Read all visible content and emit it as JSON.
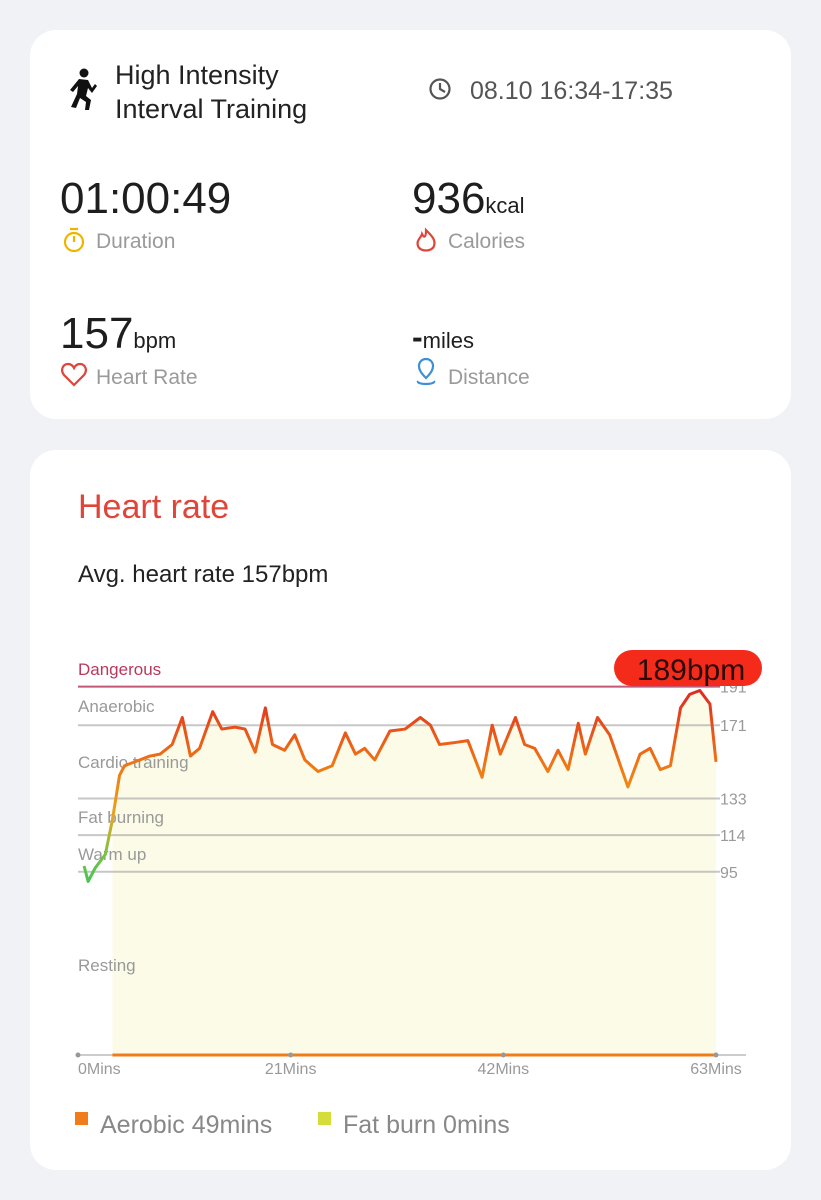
{
  "workout": {
    "title": "High Intensity Interval Training",
    "time": "08.10 16:34-17:35",
    "duration": {
      "value": "01:00:49",
      "label": "Duration"
    },
    "calories": {
      "value": "936",
      "unit": "kcal",
      "label": "Calories"
    },
    "heart_rate": {
      "value": "157",
      "unit": "bpm",
      "label": "Heart Rate"
    },
    "distance": {
      "value": "-",
      "unit": "miles",
      "label": "Distance"
    }
  },
  "chart_data": {
    "type": "line",
    "title": "Heart rate",
    "subtitle": "Avg. heart rate 157bpm",
    "x": [
      0.6,
      1.0,
      1.7,
      2.7,
      3.4,
      4.1,
      4.6,
      5.6,
      7.1,
      8.1,
      9.3,
      10.3,
      11.1,
      12.0,
      13.3,
      14.2,
      15.5,
      16.5,
      17.5,
      18.5,
      19.2,
      20.4,
      21.4,
      22.4,
      23.7,
      25.1,
      26.4,
      27.4,
      28.3,
      29.3,
      30.8,
      32.3,
      33.8,
      34.8,
      35.7,
      37.2,
      38.5,
      39.9,
      40.9,
      41.7,
      43.2,
      44.1,
      45.1,
      46.4,
      47.4,
      48.4,
      49.4,
      50.1,
      51.3,
      52.5,
      54.3,
      55.5,
      56.5,
      57.5,
      58.5,
      59.5,
      60.4,
      61.4,
      62.4,
      63
    ],
    "values": [
      98,
      90,
      97,
      104,
      122,
      145,
      150,
      152,
      155,
      156,
      161,
      175,
      155,
      159,
      178,
      169,
      170,
      169,
      157,
      180,
      161,
      158,
      166,
      153,
      147,
      150,
      167,
      156,
      159,
      153,
      168,
      169,
      175,
      171,
      161,
      162,
      163,
      144,
      171,
      156,
      175,
      161,
      159,
      147,
      158,
      148,
      172,
      156,
      175,
      166,
      139,
      156,
      159,
      148,
      150,
      180,
      187,
      189,
      182,
      152
    ],
    "xlim": [
      0,
      63
    ],
    "xticks": [
      {
        "value": 0,
        "label": "0Mins"
      },
      {
        "value": 21,
        "label": "21Mins"
      },
      {
        "value": 42,
        "label": "42Mins"
      },
      {
        "value": 63,
        "label": "63Mins"
      }
    ],
    "ylim": [
      0,
      210
    ],
    "yticks": [
      191,
      171,
      133,
      114,
      95
    ],
    "zones": [
      {
        "name": "Dangerous",
        "color": "#b8395e"
      },
      {
        "name": "Anaerobic",
        "color": "#999999"
      },
      {
        "name": "Cardio training",
        "color": "#999999"
      },
      {
        "name": "Fat burning",
        "color": "#999999"
      },
      {
        "name": "Warm up",
        "color": "#999999"
      },
      {
        "name": "Resting",
        "color": "#999999"
      }
    ],
    "annotation": "189bpm",
    "legend": [
      {
        "name": "Aerobic 49mins",
        "color": "#f07d1a"
      },
      {
        "name": "Fat burn 0mins",
        "color": "#d4dd3a"
      }
    ]
  }
}
